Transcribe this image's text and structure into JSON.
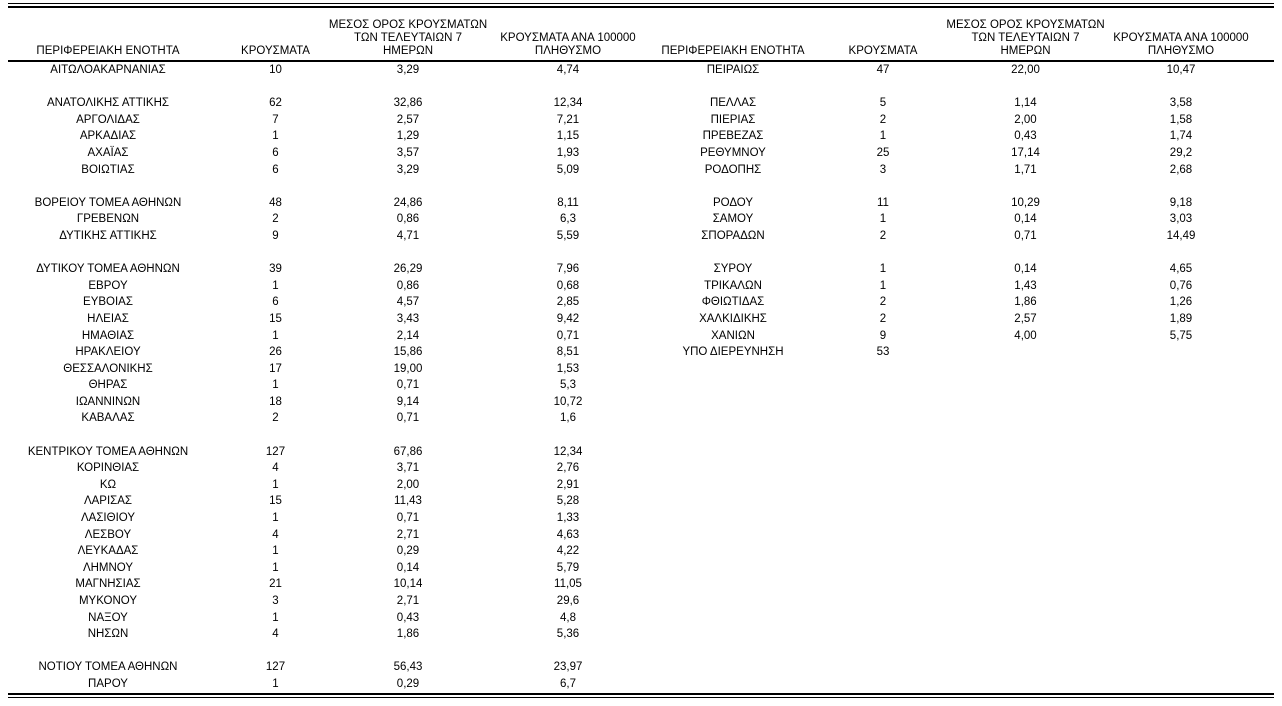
{
  "page": {
    "background_color": "#ffffff",
    "text_color": "#000000",
    "rule_color": "#000000"
  },
  "table": {
    "headers": {
      "region": "ΠΕΡΙΦΕΡΕΙΑΚΗ ΕΝΟΤΗΤΑ",
      "cases": "ΚΡΟΥΣΜΑΤΑ",
      "avg7": "ΜΕΣΟΣ ΟΡΟΣ ΚΡΟΥΣΜΑΤΩΝ\nΤΩΝ ΤΕΛΕΥΤΑΙΩΝ 7\nΗΜΕΡΩΝ",
      "per100k": "ΚΡΟΥΣΜΑΤΑ ΑΝΑ 100000\nΠΛΗΘΥΣΜΟ"
    },
    "rows": [
      [
        "ΑΙΤΩΛΟΑΚΑΡΝΑΝΙΑΣ",
        "10",
        "3,29",
        "4,74",
        "ΠΕΙΡΑΙΩΣ",
        "47",
        "22,00",
        "10,47"
      ],
      [
        "",
        "",
        "",
        "",
        "",
        "",
        "",
        ""
      ],
      [
        "ΑΝΑΤΟΛΙΚΗΣ ΑΤΤΙΚΗΣ",
        "62",
        "32,86",
        "12,34",
        "ΠΕΛΛΑΣ",
        "5",
        "1,14",
        "3,58"
      ],
      [
        "ΑΡΓΟΛΙΔΑΣ",
        "7",
        "2,57",
        "7,21",
        "ΠΙΕΡΙΑΣ",
        "2",
        "2,00",
        "1,58"
      ],
      [
        "ΑΡΚΑΔΙΑΣ",
        "1",
        "1,29",
        "1,15",
        "ΠΡΕΒΕΖΑΣ",
        "1",
        "0,43",
        "1,74"
      ],
      [
        "ΑΧΑΪΑΣ",
        "6",
        "3,57",
        "1,93",
        "ΡΕΘΥΜΝΟΥ",
        "25",
        "17,14",
        "29,2"
      ],
      [
        "ΒΟΙΩΤΙΑΣ",
        "6",
        "3,29",
        "5,09",
        "ΡΟΔΟΠΗΣ",
        "3",
        "1,71",
        "2,68"
      ],
      [
        "",
        "",
        "",
        "",
        "",
        "",
        "",
        ""
      ],
      [
        "ΒΟΡΕΙΟΥ ΤΟΜΕΑ ΑΘΗΝΩΝ",
        "48",
        "24,86",
        "8,11",
        "ΡΟΔΟΥ",
        "11",
        "10,29",
        "9,18"
      ],
      [
        "ΓΡΕΒΕΝΩΝ",
        "2",
        "0,86",
        "6,3",
        "ΣΑΜΟΥ",
        "1",
        "0,14",
        "3,03"
      ],
      [
        "ΔΥΤΙΚΗΣ ΑΤΤΙΚΗΣ",
        "9",
        "4,71",
        "5,59",
        "ΣΠΟΡΑΔΩΝ",
        "2",
        "0,71",
        "14,49"
      ],
      [
        "",
        "",
        "",
        "",
        "",
        "",
        "",
        ""
      ],
      [
        "ΔΥΤΙΚΟΥ ΤΟΜΕΑ ΑΘΗΝΩΝ",
        "39",
        "26,29",
        "7,96",
        "ΣΥΡΟΥ",
        "1",
        "0,14",
        "4,65"
      ],
      [
        "ΕΒΡΟΥ",
        "1",
        "0,86",
        "0,68",
        "ΤΡΙΚΑΛΩΝ",
        "1",
        "1,43",
        "0,76"
      ],
      [
        "ΕΥΒΟΙΑΣ",
        "6",
        "4,57",
        "2,85",
        "ΦΘΙΩΤΙΔΑΣ",
        "2",
        "1,86",
        "1,26"
      ],
      [
        "ΗΛΕΙΑΣ",
        "15",
        "3,43",
        "9,42",
        "ΧΑΛΚΙΔΙΚΗΣ",
        "2",
        "2,57",
        "1,89"
      ],
      [
        "ΗΜΑΘΙΑΣ",
        "1",
        "2,14",
        "0,71",
        "ΧΑΝΙΩΝ",
        "9",
        "4,00",
        "5,75"
      ],
      [
        "ΗΡΑΚΛΕΙΟΥ",
        "26",
        "15,86",
        "8,51",
        "ΥΠΟ ΔΙΕΡΕΥΝΗΣΗ",
        "53",
        "",
        ""
      ],
      [
        "ΘΕΣΣΑΛΟΝΙΚΗΣ",
        "17",
        "19,00",
        "1,53",
        "",
        "",
        "",
        ""
      ],
      [
        "ΘΗΡΑΣ",
        "1",
        "0,71",
        "5,3",
        "",
        "",
        "",
        ""
      ],
      [
        "ΙΩΑΝΝΙΝΩΝ",
        "18",
        "9,14",
        "10,72",
        "",
        "",
        "",
        ""
      ],
      [
        "ΚΑΒΑΛΑΣ",
        "2",
        "0,71",
        "1,6",
        "",
        "",
        "",
        ""
      ],
      [
        "",
        "",
        "",
        "",
        "",
        "",
        "",
        ""
      ],
      [
        "ΚΕΝΤΡΙΚΟΥ ΤΟΜΕΑ ΑΘΗΝΩΝ",
        "127",
        "67,86",
        "12,34",
        "",
        "",
        "",
        ""
      ],
      [
        "ΚΟΡΙΝΘΙΑΣ",
        "4",
        "3,71",
        "2,76",
        "",
        "",
        "",
        ""
      ],
      [
        "ΚΩ",
        "1",
        "2,00",
        "2,91",
        "",
        "",
        "",
        ""
      ],
      [
        "ΛΑΡΙΣΑΣ",
        "15",
        "11,43",
        "5,28",
        "",
        "",
        "",
        ""
      ],
      [
        "ΛΑΣΙΘΙΟΥ",
        "1",
        "0,71",
        "1,33",
        "",
        "",
        "",
        ""
      ],
      [
        "ΛΕΣΒΟΥ",
        "4",
        "2,71",
        "4,63",
        "",
        "",
        "",
        ""
      ],
      [
        "ΛΕΥΚΑΔΑΣ",
        "1",
        "0,29",
        "4,22",
        "",
        "",
        "",
        ""
      ],
      [
        "ΛΗΜΝΟΥ",
        "1",
        "0,14",
        "5,79",
        "",
        "",
        "",
        ""
      ],
      [
        "ΜΑΓΝΗΣΙΑΣ",
        "21",
        "10,14",
        "11,05",
        "",
        "",
        "",
        ""
      ],
      [
        "ΜΥΚΟΝΟΥ",
        "3",
        "2,71",
        "29,6",
        "",
        "",
        "",
        ""
      ],
      [
        "ΝΑΞΟΥ",
        "1",
        "0,43",
        "4,8",
        "",
        "",
        "",
        ""
      ],
      [
        "ΝΗΣΩΝ",
        "4",
        "1,86",
        "5,36",
        "",
        "",
        "",
        ""
      ],
      [
        "",
        "",
        "",
        "",
        "",
        "",
        "",
        ""
      ],
      [
        "ΝΟΤΙΟΥ ΤΟΜΕΑ ΑΘΗΝΩΝ",
        "127",
        "56,43",
        "23,97",
        "",
        "",
        "",
        ""
      ],
      [
        "ΠΑΡΟΥ",
        "1",
        "0,29",
        "6,7",
        "",
        "",
        "",
        ""
      ]
    ]
  }
}
